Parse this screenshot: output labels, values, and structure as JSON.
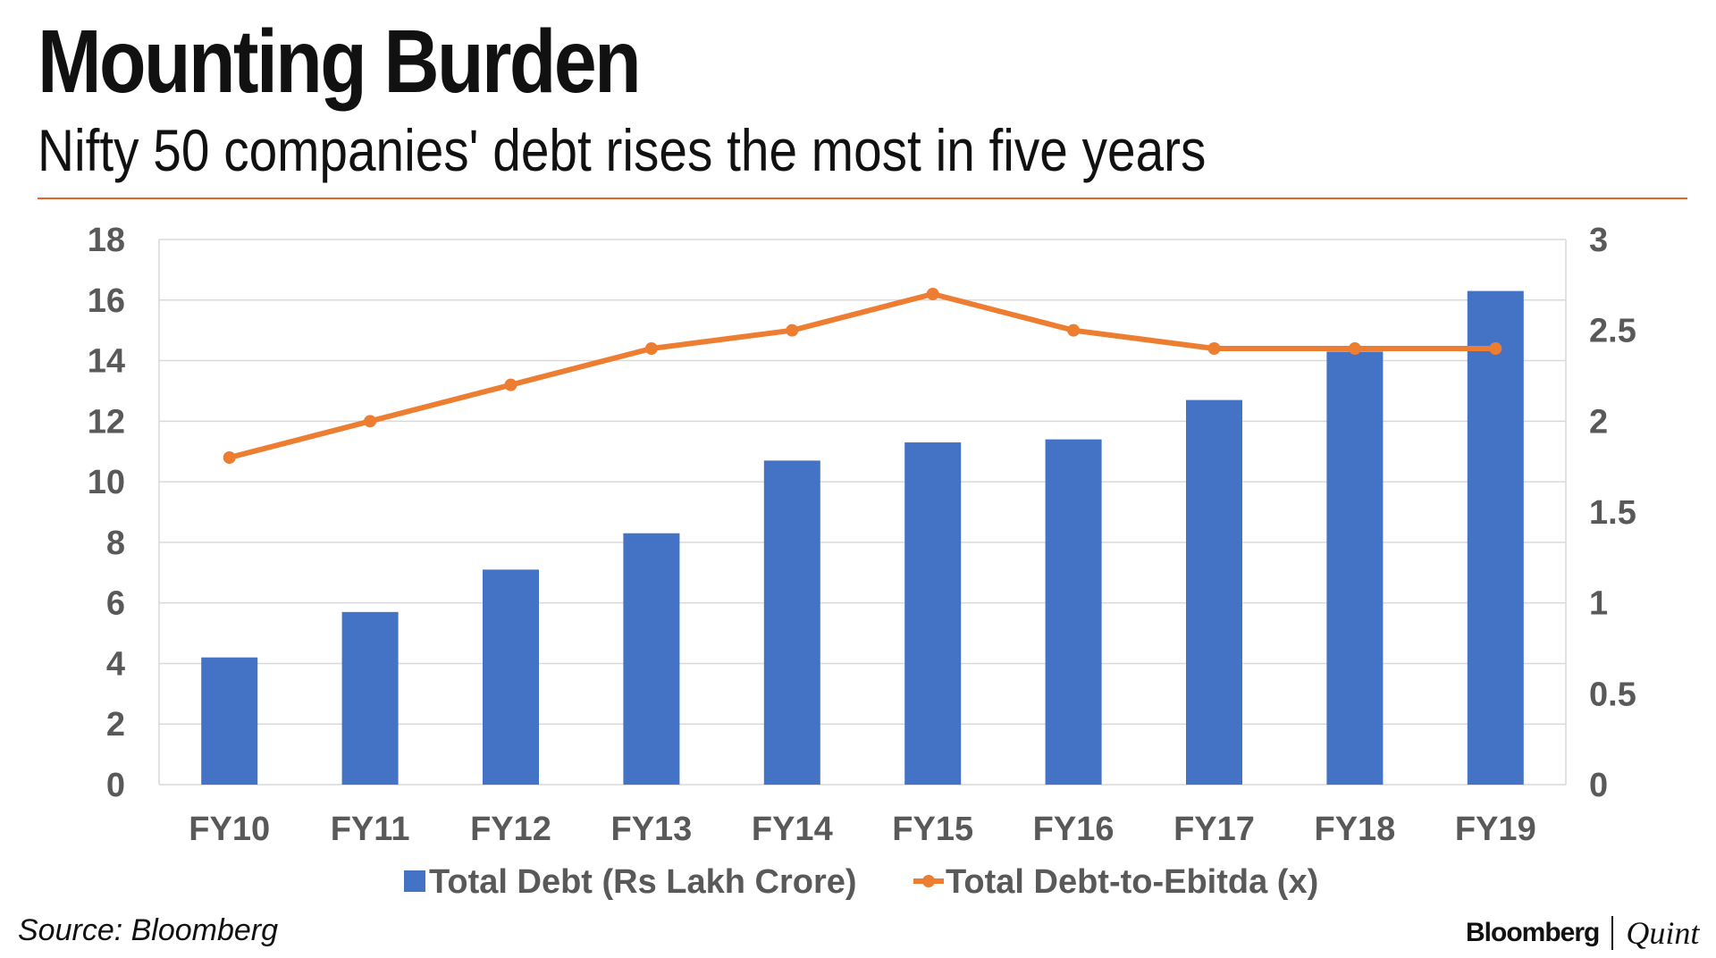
{
  "header": {
    "title": "Mounting Burden",
    "subtitle": "Nifty 50 companies' debt rises the most in five years"
  },
  "footer": {
    "source": "Source: Bloomberg",
    "brand_left": "Bloomberg",
    "brand_right": "Quint"
  },
  "colors": {
    "bar": "#4472c4",
    "line": "#ed7d31",
    "accent_rule": "#e8622a",
    "grid": "#d9d9d9",
    "tick_text": "#595959"
  },
  "chart_data": {
    "type": "bar",
    "categories": [
      "FY10",
      "FY11",
      "FY12",
      "FY13",
      "FY14",
      "FY15",
      "FY16",
      "FY17",
      "FY18",
      "FY19"
    ],
    "series": [
      {
        "name": "Total Debt (Rs Lakh Crore)",
        "type": "bar",
        "axis": "left",
        "values": [
          4.2,
          5.7,
          7.1,
          8.3,
          10.7,
          11.3,
          11.4,
          12.7,
          14.3,
          16.3
        ]
      },
      {
        "name": "Total Debt-to-Ebitda (x)",
        "type": "line",
        "axis": "right",
        "values": [
          1.8,
          2.0,
          2.2,
          2.4,
          2.5,
          2.7,
          2.5,
          2.4,
          2.4,
          2.4
        ]
      }
    ],
    "y_left": {
      "min": 0,
      "max": 18,
      "ticks": [
        "0",
        "2",
        "4",
        "6",
        "8",
        "10",
        "12",
        "14",
        "16",
        "18"
      ]
    },
    "y_right": {
      "min": 0,
      "max": 3,
      "ticks": [
        "0",
        "0.5",
        "1",
        "1.5",
        "2",
        "2.5",
        "3"
      ]
    },
    "grid": true,
    "legend_position": "bottom"
  }
}
